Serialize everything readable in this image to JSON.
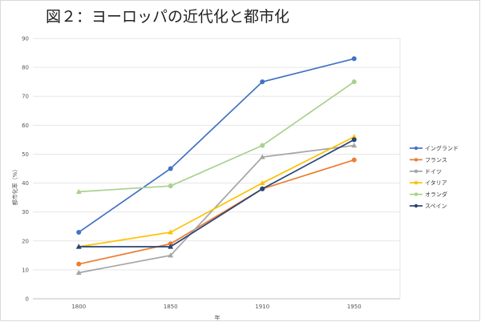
{
  "chart_data": {
    "type": "line",
    "title": "図２：ヨーロッパの近代化と都市化",
    "xlabel": "年",
    "ylabel": "都市化率（%）",
    "categories": [
      "1800",
      "1850",
      "1910",
      "1950"
    ],
    "ylim": [
      0,
      90
    ],
    "yticks": [
      0,
      10,
      20,
      30,
      40,
      50,
      60,
      70,
      80,
      90
    ],
    "grid": true,
    "legend": "right",
    "series": [
      {
        "name": "イングランド",
        "color": "#4472C4",
        "marker": "circle",
        "values": [
          23,
          45,
          75,
          83
        ]
      },
      {
        "name": "フランス",
        "color": "#ED7D31",
        "marker": "circle",
        "values": [
          12,
          19,
          38,
          48
        ]
      },
      {
        "name": "ドイツ",
        "color": "#A5A5A5",
        "marker": "triangle",
        "values": [
          9,
          15,
          49,
          53
        ]
      },
      {
        "name": "イタリア",
        "color": "#FFC000",
        "marker": "triangle",
        "values": [
          18,
          23,
          40,
          56
        ]
      },
      {
        "name": "オランダ",
        "color": "#A9D18E",
        "marker": "triangle-circle",
        "values": [
          37,
          39,
          53,
          75
        ]
      },
      {
        "name": "スペイン",
        "color": "#264478",
        "marker": "triangle-triangle-circle-circle",
        "values": [
          18,
          18,
          38,
          55
        ]
      }
    ]
  }
}
